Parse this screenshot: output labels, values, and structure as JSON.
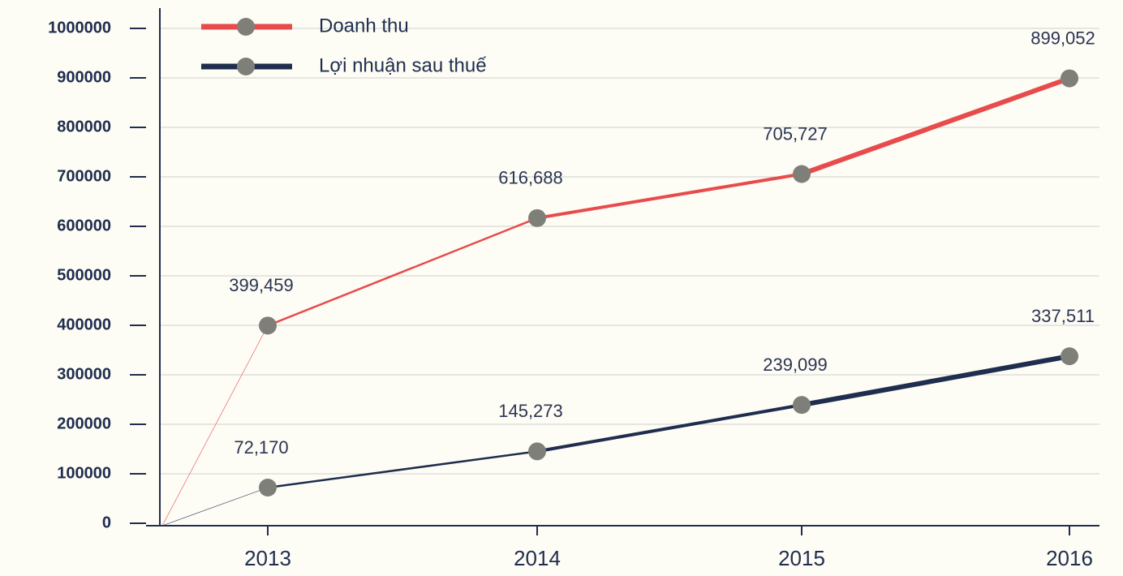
{
  "chart_data": {
    "type": "line",
    "categories": [
      "2013",
      "2014",
      "2015",
      "2016"
    ],
    "series": [
      {
        "name": "Doanh thu",
        "color": "#e84b4b",
        "values": [
          399459,
          616688,
          705727,
          899052
        ],
        "value_labels": [
          "399,459",
          "616,688",
          "705,727",
          "899,052"
        ]
      },
      {
        "name": "Lợi nhuận sau thuế",
        "color": "#1f2d4e",
        "values": [
          72170,
          145273,
          239099,
          337511
        ],
        "value_labels": [
          "72,170",
          "145,273",
          "239,099",
          "337,511"
        ]
      }
    ],
    "marker_color": "#7f7f7a",
    "ylim": [
      0,
      1000000
    ],
    "yticks": [
      0,
      100000,
      200000,
      300000,
      400000,
      500000,
      600000,
      700000,
      800000,
      900000,
      1000000
    ],
    "grid": true,
    "legend": "top-left"
  }
}
